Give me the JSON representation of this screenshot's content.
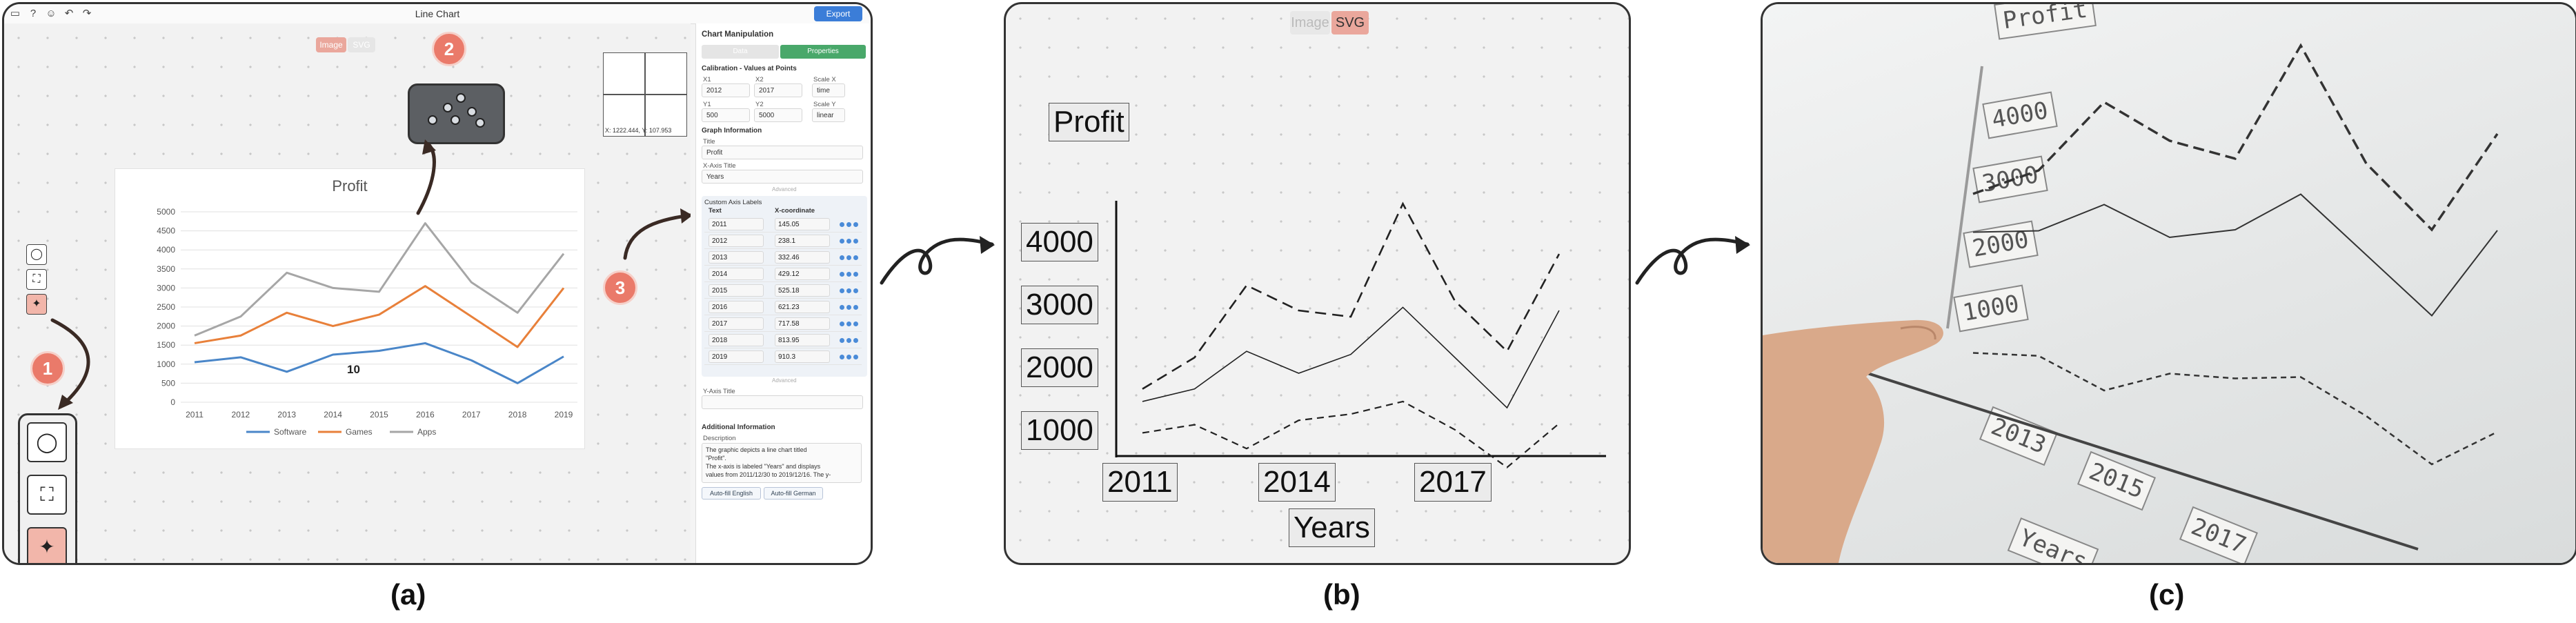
{
  "panel_a": {
    "window_title": "Line Chart",
    "export_label": "Export",
    "toggle": {
      "image": "Image",
      "svg": "SVG"
    },
    "step_badges": [
      "1",
      "2",
      "3"
    ],
    "minimap_readout": "X: 1222.444, Y: 107.953",
    "chart_title": "Profit",
    "cursor_label": "10",
    "right_panel": {
      "heading": "Chart Manipulation",
      "tab_data": "Data",
      "tab_properties": "Properties",
      "calibration_heading": "Calibration - Values at Points",
      "x1_label": "X1",
      "x1_value": "2012",
      "x2_label": "X2",
      "x2_value": "2017",
      "scale_x_label": "Scale X",
      "scale_x_value": "time",
      "y1_label": "Y1",
      "y1_value": "500",
      "y2_label": "Y2",
      "y2_value": "5000",
      "scale_y_label": "Scale Y",
      "scale_y_value": "linear",
      "graph_info_heading": "Graph Information",
      "title_label": "Title",
      "title_value": "Profit",
      "xaxis_title_label": "X-Axis Title",
      "xaxis_title_value": "Years",
      "advanced_1": "Advanced",
      "custom_labels_heading": "Custom Axis Labels",
      "col_text": "Text",
      "col_xcoord": "X-coordinate",
      "labels": [
        {
          "text": "2011",
          "x": "145.05"
        },
        {
          "text": "2012",
          "x": "238.1"
        },
        {
          "text": "2013",
          "x": "332.46"
        },
        {
          "text": "2014",
          "x": "429.12"
        },
        {
          "text": "2015",
          "x": "525.18"
        },
        {
          "text": "2016",
          "x": "621.23"
        },
        {
          "text": "2017",
          "x": "717.58"
        },
        {
          "text": "2018",
          "x": "813.95"
        },
        {
          "text": "2019",
          "x": "910.3"
        }
      ],
      "advanced_2": "Advanced",
      "yaxis_title_label": "Y-Axis Title",
      "additional_heading": "Additional Information",
      "description_label": "Description",
      "description_lines": [
        "The graphic depicts a line chart titled",
        "\"Profit\".",
        "The x-axis is labeled \"Years\" and displays",
        "values from 2011/12/30 to 2019/12/16. The y-"
      ],
      "autofill_en": "Auto-fill English",
      "autofill_de": "Auto-fill German"
    }
  },
  "panel_b": {
    "toggle": {
      "image": "Image",
      "svg": "SVG"
    },
    "title": "Profit",
    "y_ticks": [
      "4000",
      "3000",
      "2000",
      "1000"
    ],
    "x_ticks": [
      "2011",
      "2014",
      "2017"
    ],
    "xlabel": "Years"
  },
  "panel_c": {
    "title": "Profit",
    "y_ticks": [
      "4000",
      "3000",
      "2000",
      "1000"
    ],
    "x_ticks": [
      "2013",
      "2015",
      "2017"
    ],
    "xlabel": "Years"
  },
  "captions": [
    "(a)",
    "(b)",
    "(c)"
  ],
  "chart_data": {
    "type": "line",
    "title": "Profit",
    "xlabel": "",
    "ylabel": "",
    "categories": [
      "2011",
      "2012",
      "2013",
      "2014",
      "2015",
      "2016",
      "2017",
      "2018",
      "2019"
    ],
    "ylim": [
      0,
      5000
    ],
    "yticks": [
      0,
      500,
      1000,
      1500,
      2000,
      2500,
      3000,
      3500,
      4000,
      4500,
      5000
    ],
    "grid": true,
    "legend": "bottom",
    "series": [
      {
        "name": "Software",
        "color": "#4a86c8",
        "values": [
          1050,
          1180,
          800,
          1250,
          1350,
          1550,
          1100,
          500,
          1200
        ]
      },
      {
        "name": "Games",
        "color": "#e8803a",
        "values": [
          1550,
          1750,
          2350,
          2000,
          2300,
          3050,
          2250,
          1450,
          3000
        ]
      },
      {
        "name": "Apps",
        "color": "#a6a6a6",
        "values": [
          1750,
          2250,
          3400,
          3000,
          2900,
          4700,
          3150,
          2350,
          3900
        ]
      }
    ]
  }
}
